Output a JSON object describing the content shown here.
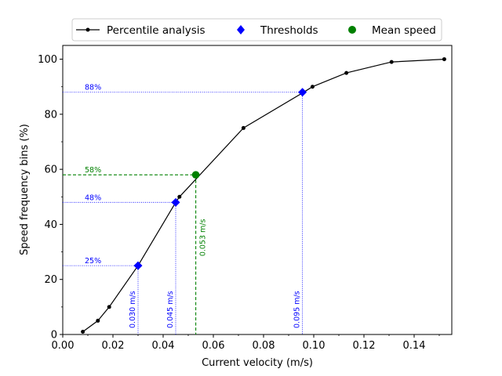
{
  "chart_data": {
    "type": "line",
    "xlabel": "Current velocity (m/s)",
    "ylabel": "Speed frequency bins (%)",
    "xlim": [
      0.0,
      0.155
    ],
    "ylim": [
      0,
      105
    ],
    "x_ticks": [
      "0.00",
      "0.02",
      "0.04",
      "0.06",
      "0.08",
      "0.10",
      "0.12",
      "0.14"
    ],
    "y_ticks": [
      "0",
      "20",
      "40",
      "60",
      "80",
      "100"
    ],
    "legend": {
      "placement": "top",
      "entries": [
        "Percentile analysis",
        "Thresholds",
        "Mean speed"
      ]
    },
    "series": [
      {
        "name": "Percentile analysis",
        "color": "#000000",
        "x": [
          0.008,
          0.014,
          0.0185,
          0.03,
          0.045,
          0.0465,
          0.072,
          0.096,
          0.0995,
          0.113,
          0.131,
          0.152
        ],
        "y": [
          1,
          5,
          10,
          25,
          48,
          50,
          75,
          88,
          90,
          95,
          99,
          100
        ]
      }
    ],
    "thresholds": {
      "name": "Thresholds",
      "color": "#0000ff",
      "points": [
        {
          "x": 0.03,
          "y": 25,
          "y_label": "25%",
          "x_label": "0.030 m/s"
        },
        {
          "x": 0.045,
          "y": 48,
          "y_label": "48%",
          "x_label": "0.045 m/s"
        },
        {
          "x": 0.0955,
          "y": 88,
          "y_label": "88%",
          "x_label": "0.095 m/s"
        }
      ]
    },
    "mean": {
      "name": "Mean speed",
      "color": "#008000",
      "x": 0.053,
      "y": 58,
      "y_label": "58%",
      "x_label": "0.053 m/s"
    }
  }
}
